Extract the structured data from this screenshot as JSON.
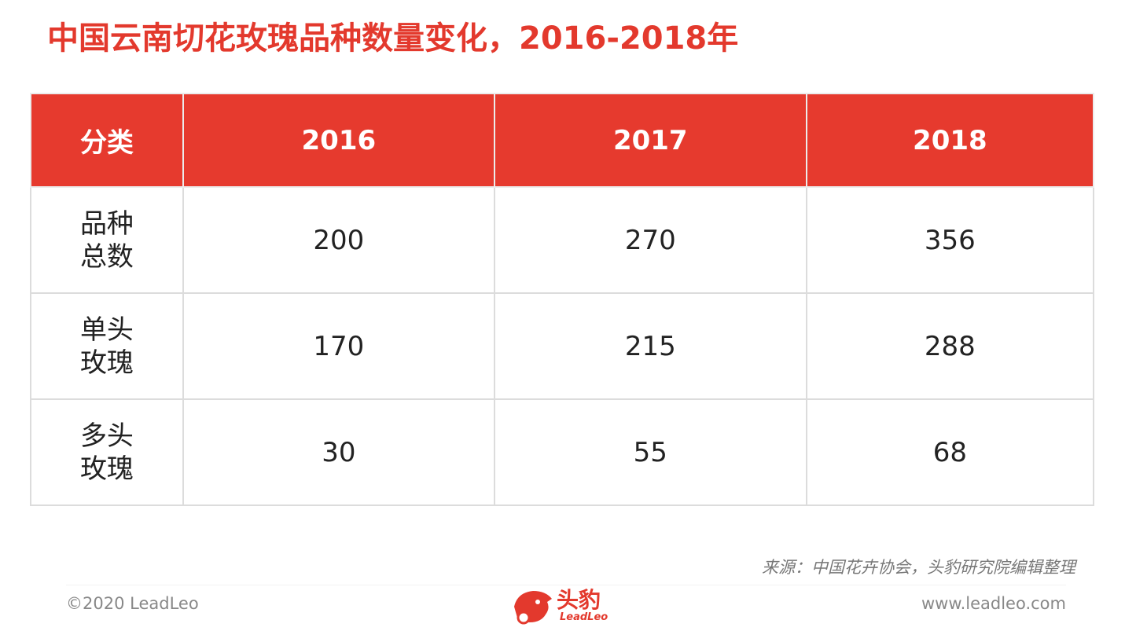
{
  "header": {
    "title": "中国云南切花玫瑰品种数量变化，2016-2018年"
  },
  "table": {
    "columns": [
      "分类",
      "2016",
      "2017",
      "2018"
    ],
    "rows": [
      [
        "品种总数",
        200,
        270,
        356
      ],
      [
        "单头玫瑰",
        170,
        215,
        288
      ],
      [
        "多头玫瑰",
        30,
        55,
        68
      ]
    ]
  },
  "source": "来源：中国花卉协会，头豹研究院编辑整理",
  "footer": {
    "copyright": "©2020 LeadLeo",
    "logo_cn": "头豹",
    "logo_en": "LeadLeo",
    "url": "www.leadleo.com"
  }
}
